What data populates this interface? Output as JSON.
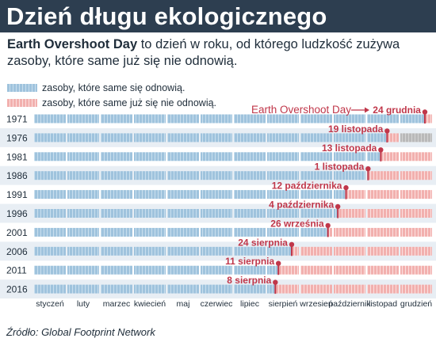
{
  "title": "Dzień długu ekologicznego",
  "subtitle": {
    "bold": "Earth Overshoot Day",
    "rest": " to dzień w roku, od którego ludzkość zużywa zasoby, które same już się nie odnowią."
  },
  "legend": {
    "renewable": "zasoby, które same się odnowią.",
    "nonrenewable": "zasoby, które same już się nie odnowią."
  },
  "source": "Źródło: Global Footprint Network",
  "colors": {
    "header_bg": "#2d3e50",
    "renewable": "#9fc3dd",
    "renewable_stripe": "#c9dfee",
    "nonrenewable": "#f2b0ae",
    "nonrenewable_stripe": "#fbe0df",
    "marker": "#c0374a",
    "row_band": "#e8eef4",
    "gray_cell": "#b9b9b9"
  },
  "chart_data": {
    "type": "bar",
    "annotation_header": "Earth Overshoot Day",
    "months": [
      "styczeń",
      "luty",
      "marzec",
      "kwiecień",
      "maj",
      "czerwiec",
      "lipiec",
      "sierpień",
      "wrzesień",
      "październik",
      "listopad",
      "grudzień"
    ],
    "rows": [
      {
        "year": "1971",
        "label": "24 grudnia",
        "month": 12,
        "day": 24
      },
      {
        "year": "1976",
        "label": "19 listopada",
        "month": 11,
        "day": 19
      },
      {
        "year": "1981",
        "label": "13 listopada",
        "month": 11,
        "day": 13
      },
      {
        "year": "1986",
        "label": "1 listopada",
        "month": 11,
        "day": 1
      },
      {
        "year": "1991",
        "label": "12 października",
        "month": 10,
        "day": 12
      },
      {
        "year": "1996",
        "label": "4 października",
        "month": 10,
        "day": 4
      },
      {
        "year": "2001",
        "label": "26 września",
        "month": 9,
        "day": 26
      },
      {
        "year": "2006",
        "label": "24 sierpnia",
        "month": 8,
        "day": 24
      },
      {
        "year": "2011",
        "label": "11 sierpnia",
        "month": 8,
        "day": 11
      },
      {
        "year": "2016",
        "label": "8 sierpnia",
        "month": 8,
        "day": 8
      }
    ]
  }
}
